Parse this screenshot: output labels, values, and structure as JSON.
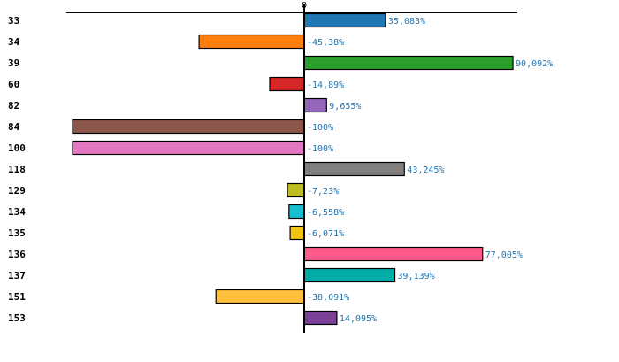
{
  "chart_data": {
    "type": "bar",
    "orientation": "horizontal",
    "title": "",
    "xlabel": "",
    "ylabel": "",
    "xlim": [
      -100,
      91
    ],
    "zero_tick_label": "0",
    "grid": false,
    "highlight_category": "100",
    "highlight_color": "#ff0000",
    "label_color": "#1f77b4",
    "categories": [
      "33",
      "34",
      "39",
      "60",
      "82",
      "84",
      "100",
      "118",
      "129",
      "134",
      "135",
      "136",
      "137",
      "151",
      "153"
    ],
    "values": [
      35.083,
      -45.38,
      90.092,
      -14.89,
      9.655,
      -100,
      -100,
      43.245,
      -7.23,
      -6.558,
      -6.071,
      77.005,
      39.139,
      -38.091,
      14.095
    ],
    "value_labels": [
      "35,083%",
      "-45,38%",
      "90,092%",
      "-14,89%",
      "9,655%",
      "-100%",
      "-100%",
      "43,245%",
      "-7,23%",
      "-6,558%",
      "-6,071%",
      "77,005%",
      "39,139%",
      "-38,091%",
      "14,095%"
    ],
    "colors": [
      "#1f77b4",
      "#ff7f0e",
      "#2ca02c",
      "#d62728",
      "#9467bd",
      "#8c564b",
      "#e377c2",
      "#7f7f7f",
      "#bcbd22",
      "#17becf",
      "#f1c40f",
      "#ff5a8c",
      "#00aca6",
      "#ffc13b",
      "#7b3f98"
    ]
  }
}
